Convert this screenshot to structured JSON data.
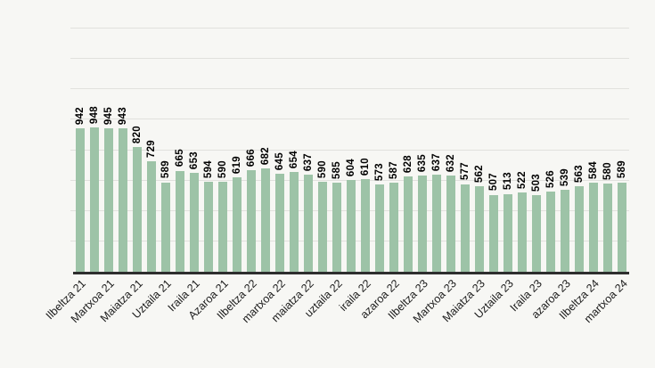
{
  "page": {
    "background": "#f7f7f4"
  },
  "chart_data": {
    "type": "bar",
    "title": "",
    "categories": [
      "Ilbeltza 21",
      "",
      "Martxoa 21",
      "",
      "Maiatza 21",
      "",
      "Uztaila 21",
      "",
      "Iraila 21",
      "",
      "Azaroa 21",
      "",
      "Ilbeltza 22",
      "",
      "martxoa 22",
      "",
      "maiatza 22",
      "",
      "uztaila 22",
      "",
      "iraila 22",
      "",
      "azaroa 22",
      "",
      "Ilbeltza 23",
      "",
      "Martxoa 23",
      "",
      "Maiatza 23",
      "",
      "Uztaila 23",
      "",
      "Iraila 23",
      "",
      "azaroa 23",
      "",
      "Ilbeltza 24",
      "",
      "martxoa 24"
    ],
    "values": [
      942,
      948,
      945,
      943,
      820,
      729,
      589,
      665,
      653,
      594,
      590,
      619,
      666,
      682,
      645,
      654,
      637,
      590,
      585,
      604,
      610,
      573,
      587,
      628,
      635,
      637,
      632,
      577,
      562,
      507,
      513,
      522,
      503,
      526,
      539,
      563,
      584,
      580,
      589
    ],
    "data_labels_visible": true,
    "xlabel": "",
    "ylabel": "",
    "ylim": [
      0,
      1700
    ],
    "grid_step": 200,
    "grid_max": 1600,
    "grid_on": true,
    "legend": "none",
    "colors": {
      "bar": "#9dc3a7",
      "gridline": "#e1e1dd",
      "axis": "#2e2e2e",
      "value_label": "#000000",
      "tick_label": "#1b1b1b"
    }
  }
}
